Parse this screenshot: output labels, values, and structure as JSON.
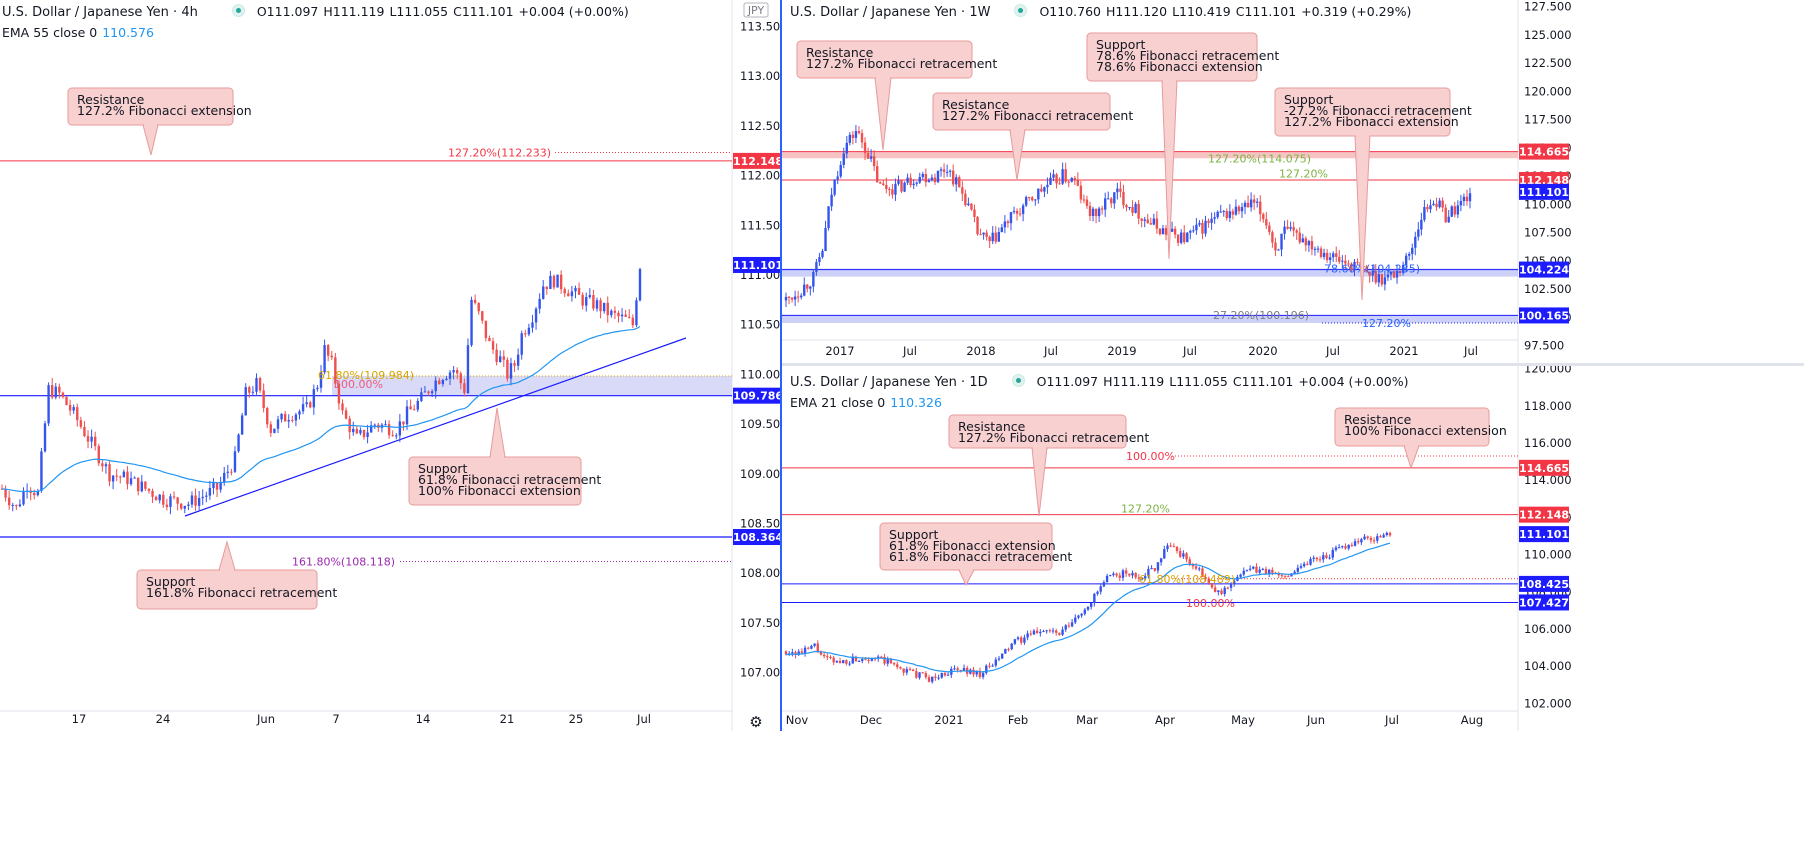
{
  "colors": {
    "up": "#3355ee",
    "down": "#ee4f4f",
    "ema": "#2196f3",
    "res": "#f23645",
    "sup": "#1a1aff",
    "noteFill": "#f8d0d0",
    "noteStroke": "#e89a9a"
  },
  "panels": {
    "h4": {
      "title": "U.S. Dollar / Japanese Yen · 4h",
      "ohlc": {
        "o": "O111.097",
        "h": "H111.119",
        "l": "L111.055",
        "c": "C111.101",
        "chg": "+0.004 (+0.00%)"
      },
      "ema": {
        "label": "EMA 55 close 0",
        "value": "110.576"
      },
      "currency_badge": "JPY",
      "yaxis_ticks": [
        "113.500",
        "113.000",
        "112.500",
        "112.000",
        "111.500",
        "111.000",
        "110.500",
        "110.000",
        "109.500",
        "109.000",
        "108.500",
        "108.000",
        "107.500",
        "107.000"
      ],
      "xaxis_ticks": [
        "17",
        "24",
        "Jun",
        "7",
        "14",
        "21",
        "25",
        "Jul"
      ],
      "price_tags": [
        {
          "text": "112.148",
          "kind": "res"
        },
        {
          "text": "111.101",
          "kind": "cur"
        },
        {
          "text": "109.786",
          "kind": "sup"
        },
        {
          "text": "108.364",
          "kind": "sup"
        }
      ],
      "fib_labels": [
        {
          "text": "127.20%(112.233)",
          "kind": "res"
        },
        {
          "text": "61.80%(109.984)",
          "kind": "gold"
        },
        {
          "text": "100.00%",
          "kind": "res"
        },
        {
          "text": "161.80%(108.118)",
          "kind": "purple"
        }
      ],
      "notes": [
        {
          "lines": [
            "Resistance",
            "127.2% Fibonacci extension"
          ]
        },
        {
          "lines": [
            "Support",
            "61.8% Fibonacci retracement",
            "100% Fibonacci extension"
          ]
        },
        {
          "lines": [
            "Support",
            "161.8% Fibonacci retracement"
          ]
        }
      ]
    },
    "w1": {
      "title": "U.S. Dollar / Japanese Yen · 1W",
      "ohlc": {
        "o": "O110.760",
        "h": "H111.120",
        "l": "L110.419",
        "c": "C111.101",
        "chg": "+0.319 (+0.29%)"
      },
      "yaxis_ticks": [
        "127.500",
        "125.000",
        "122.500",
        "120.000",
        "117.500",
        "115.000",
        "112.500",
        "110.000",
        "107.500",
        "105.000",
        "102.500",
        "100.000",
        "97.500"
      ],
      "xaxis_ticks": [
        "2017",
        "Jul",
        "2018",
        "Jul",
        "2019",
        "Jul",
        "2020",
        "Jul",
        "2021",
        "Jul"
      ],
      "price_tags": [
        {
          "text": "114.665",
          "kind": "res"
        },
        {
          "text": "112.148",
          "kind": "res"
        },
        {
          "text": "111.101",
          "kind": "cur"
        },
        {
          "text": "104.224",
          "kind": "sup"
        },
        {
          "text": "100.165",
          "kind": "sup"
        }
      ],
      "fib_labels": [
        {
          "text": "127.20%(114.075)",
          "kind": "green"
        },
        {
          "text": "127.20%",
          "kind": "green"
        },
        {
          "text": "78.60%(104.235)",
          "kind": "sup"
        },
        {
          "text": "27.20%(100.196)",
          "kind": "gray"
        },
        {
          "text": "127.20%",
          "kind": "sup"
        }
      ],
      "notes": [
        {
          "lines": [
            "Resistance",
            "127.2% Fibonacci retracement"
          ]
        },
        {
          "lines": [
            "Resistance",
            "127.2% Fibonacci retracement"
          ]
        },
        {
          "lines": [
            "Support",
            "78.6% Fibonacci retracement",
            "78.6% Fibonacci extension"
          ]
        },
        {
          "lines": [
            "Support",
            "-27.2% Fibonacci retracement",
            "127.2% Fibonacci extension"
          ]
        }
      ]
    },
    "d1": {
      "title": "U.S. Dollar / Japanese Yen · 1D",
      "ohlc": {
        "o": "O111.097",
        "h": "H111.119",
        "l": "L111.055",
        "c": "C111.101",
        "chg": "+0.004 (+0.00%)"
      },
      "ema": {
        "label": "EMA 21 close 0",
        "value": "110.326"
      },
      "yaxis_ticks": [
        "120.000",
        "118.000",
        "116.000",
        "114.000",
        "112.000",
        "110.000",
        "108.000",
        "106.000",
        "104.000",
        "102.000"
      ],
      "xaxis_ticks": [
        "Nov",
        "Dec",
        "2021",
        "Feb",
        "Mar",
        "Apr",
        "May",
        "Jun",
        "Jul",
        "Aug"
      ],
      "price_tags": [
        {
          "text": "114.665",
          "kind": "res"
        },
        {
          "text": "112.148",
          "kind": "res"
        },
        {
          "text": "111.101",
          "kind": "cur"
        },
        {
          "text": "108.425",
          "kind": "sup"
        },
        {
          "text": "107.427",
          "kind": "sup"
        }
      ],
      "fib_labels": [
        {
          "text": "100.00%",
          "kind": "res"
        },
        {
          "text": "127.20%",
          "kind": "green"
        },
        {
          "text": "61.80%(108.489)",
          "kind": "gold"
        },
        {
          "text": "100.00%",
          "kind": "res"
        }
      ],
      "notes": [
        {
          "lines": [
            "Resistance",
            "127.2% Fibonacci retracement"
          ]
        },
        {
          "lines": [
            "Resistance",
            "100% Fibonacci extension"
          ]
        },
        {
          "lines": [
            "Support",
            "61.8% Fibonacci extension",
            "61.8% Fibonacci retracement"
          ]
        }
      ]
    }
  },
  "chart_data": [
    {
      "type": "candlestick",
      "timeframe": "4h",
      "ylim": [
        106.75,
        113.6
      ],
      "xlabels": [
        "17",
        "24",
        "Jun",
        "7",
        "14",
        "21",
        "25",
        "Jul"
      ],
      "levels": [
        112.148,
        109.786,
        108.364
      ],
      "fib": {
        "127.2%": 112.233,
        "61.8%": 109.984,
        "161.8%": 108.118
      },
      "close_path": [
        [
          0,
          108.85
        ],
        [
          4,
          108.65
        ],
        [
          7,
          108.9
        ],
        [
          10,
          108.8
        ],
        [
          13,
          109.85
        ],
        [
          16,
          109.8
        ],
        [
          20,
          109.6
        ],
        [
          25,
          109.3
        ],
        [
          30,
          109.0
        ],
        [
          35,
          108.95
        ],
        [
          40,
          108.85
        ],
        [
          45,
          108.75
        ],
        [
          52,
          108.7
        ],
        [
          60,
          108.85
        ],
        [
          65,
          109.15
        ],
        [
          68,
          109.8
        ],
        [
          71,
          109.9
        ],
        [
          75,
          109.45
        ],
        [
          80,
          109.6
        ],
        [
          85,
          109.65
        ],
        [
          88,
          109.9
        ],
        [
          90,
          110.25
        ],
        [
          92,
          110.1
        ],
        [
          95,
          109.6
        ],
        [
          99,
          109.35
        ],
        [
          104,
          109.5
        ],
        [
          110,
          109.45
        ],
        [
          113,
          109.6
        ],
        [
          117,
          109.75
        ],
        [
          120,
          109.9
        ],
        [
          123,
          110.0
        ],
        [
          126,
          110.05
        ],
        [
          129,
          109.85
        ],
        [
          131,
          110.75
        ],
        [
          133,
          110.6
        ],
        [
          136,
          110.3
        ],
        [
          139,
          110.15
        ],
        [
          141,
          110.0
        ],
        [
          143,
          110.1
        ],
        [
          145,
          110.4
        ],
        [
          148,
          110.6
        ],
        [
          151,
          110.9
        ],
        [
          154,
          110.95
        ],
        [
          158,
          110.85
        ],
        [
          162,
          110.75
        ],
        [
          166,
          110.7
        ],
        [
          170,
          110.6
        ],
        [
          174,
          110.55
        ],
        [
          176,
          110.5
        ],
        [
          178,
          111.1
        ]
      ]
    },
    {
      "type": "candlestick",
      "timeframe": "1W",
      "ylim": [
        96.9,
        128.4
      ],
      "xlabels": [
        "2017",
        "Jul",
        "2018",
        "Jul",
        "2019",
        "Jul",
        "2020",
        "Jul",
        "2021",
        "Jul"
      ],
      "levels": [
        114.665,
        112.148,
        104.224,
        100.165
      ],
      "close_path": [
        [
          0,
          101.5
        ],
        [
          5,
          102.5
        ],
        [
          9,
          103.5
        ],
        [
          12,
          106
        ],
        [
          15,
          111
        ],
        [
          19,
          115
        ],
        [
          23,
          116.5
        ],
        [
          27,
          114.5
        ],
        [
          31,
          111.5
        ],
        [
          37,
          111.5
        ],
        [
          43,
          112.5
        ],
        [
          49,
          112.5
        ],
        [
          53,
          113.3
        ],
        [
          59,
          110.5
        ],
        [
          63,
          107.5
        ],
        [
          67,
          106.5
        ],
        [
          73,
          108.5
        ],
        [
          79,
          110
        ],
        [
          85,
          111.5
        ],
        [
          91,
          112.5
        ],
        [
          95,
          112
        ],
        [
          98,
          110
        ],
        [
          101,
          109
        ],
        [
          105,
          110
        ],
        [
          109,
          111
        ],
        [
          113,
          110
        ],
        [
          119,
          108.5
        ],
        [
          125,
          107.5
        ],
        [
          131,
          107
        ],
        [
          137,
          108
        ],
        [
          143,
          109
        ],
        [
          149,
          109.5
        ],
        [
          154,
          110
        ],
        [
          158,
          108.5
        ],
        [
          161,
          106
        ],
        [
          164,
          107.5
        ],
        [
          170,
          107
        ],
        [
          176,
          106
        ],
        [
          182,
          105
        ],
        [
          188,
          104.5
        ],
        [
          192,
          103.8
        ],
        [
          197,
          103.5
        ],
        [
          201,
          104
        ],
        [
          205,
          105.5
        ],
        [
          209,
          109
        ],
        [
          213,
          110.5
        ],
        [
          217,
          109
        ],
        [
          221,
          109.8
        ],
        [
          225,
          111.1
        ]
      ]
    },
    {
      "type": "candlestick",
      "timeframe": "1D",
      "ylim": [
        101.9,
        120.3
      ],
      "xlabels": [
        "Nov",
        "Dec",
        "2021",
        "Feb",
        "Mar",
        "Apr",
        "May",
        "Jun",
        "Jul",
        "Aug"
      ],
      "levels": [
        114.665,
        112.148,
        108.425,
        107.427
      ],
      "close_path": [
        [
          0,
          104.8
        ],
        [
          5,
          104.7
        ],
        [
          9,
          105.1
        ],
        [
          12,
          104.4
        ],
        [
          16,
          104.2
        ],
        [
          22,
          104.4
        ],
        [
          27,
          104.5
        ],
        [
          32,
          104.2
        ],
        [
          37,
          103.8
        ],
        [
          42,
          103.5
        ],
        [
          46,
          103.3
        ],
        [
          51,
          103.7
        ],
        [
          56,
          103.8
        ],
        [
          61,
          103.6
        ],
        [
          66,
          104.2
        ],
        [
          71,
          105.2
        ],
        [
          76,
          105.6
        ],
        [
          81,
          106.0
        ],
        [
          86,
          105.7
        ],
        [
          91,
          106.5
        ],
        [
          96,
          107.5
        ],
        [
          101,
          108.7
        ],
        [
          106,
          109.0
        ],
        [
          111,
          108.8
        ],
        [
          116,
          109.3
        ],
        [
          120,
          110.6
        ],
        [
          123,
          110.2
        ],
        [
          127,
          109.6
        ],
        [
          131,
          108.9
        ],
        [
          134,
          108.1
        ],
        [
          137,
          107.9
        ],
        [
          141,
          108.7
        ],
        [
          146,
          109.2
        ],
        [
          151,
          109.1
        ],
        [
          156,
          108.8
        ],
        [
          161,
          109.3
        ],
        [
          166,
          109.8
        ],
        [
          171,
          110.0
        ],
        [
          176,
          110.5
        ],
        [
          181,
          110.8
        ],
        [
          186,
          110.9
        ],
        [
          190,
          111.1
        ]
      ]
    }
  ]
}
